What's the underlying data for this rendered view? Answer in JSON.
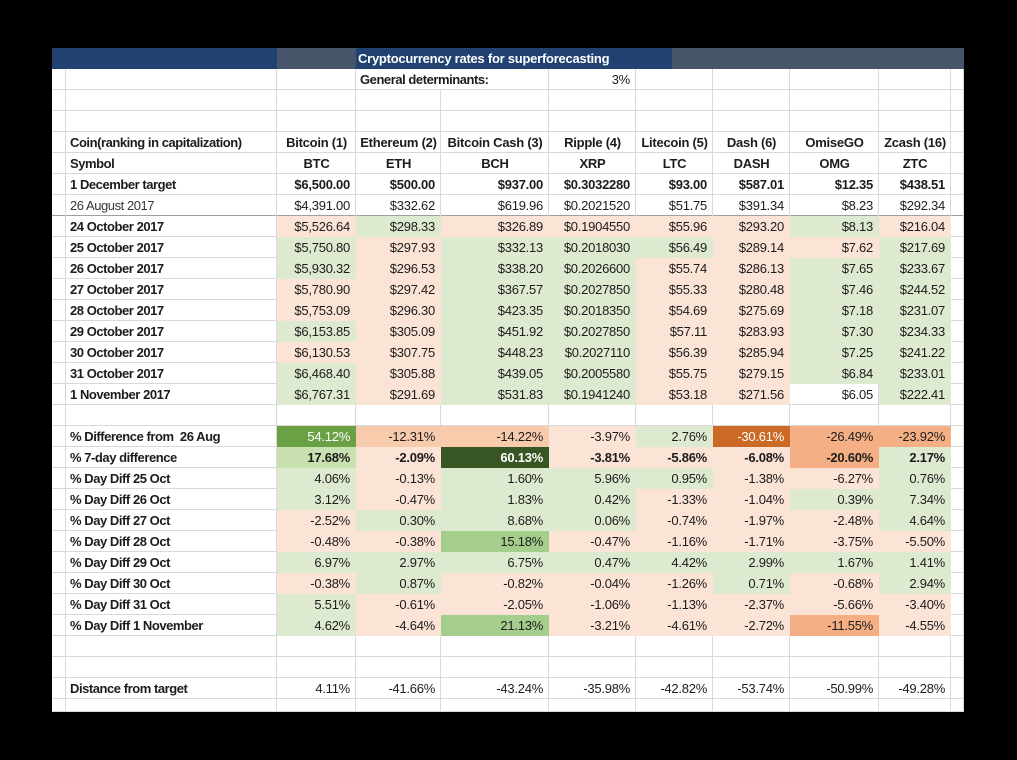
{
  "palette": {
    "navy": "#214271",
    "slate": "#465569",
    "g1": "#DDEACF",
    "g2": "#C9E0B1",
    "g3": "#A5CD8B",
    "g4": "#69A144",
    "g5": "#375623",
    "o1": "#FBE3D5",
    "o2": "#F8CBAD",
    "o3": "#F4B084",
    "o4": "#CB6A26"
  },
  "title": "Cryptocurrency rates for superforecasting",
  "determinants_label": "General determinants:",
  "determinants_value": "3%",
  "corner_label": "Coin(ranking in capitalization)",
  "symbol_label": "Symbol",
  "coins": [
    {
      "name": "Bitcoin (1)",
      "symbol": "BTC"
    },
    {
      "name": "Ethereum (2)",
      "symbol": "ETH"
    },
    {
      "name": "Bitcoin Cash (3)",
      "symbol": "BCH"
    },
    {
      "name": "Ripple (4)",
      "symbol": "XRP"
    },
    {
      "name": "Litecoin (5)",
      "symbol": "LTC"
    },
    {
      "name": "Dash (6)",
      "symbol": "DASH"
    },
    {
      "name": "OmiseGO",
      "symbol": "OMG"
    },
    {
      "name": "Zcash (16)",
      "symbol": "ZTC"
    }
  ],
  "price_rows": [
    {
      "label": "1 December target",
      "bold_label": true,
      "bold_values": true,
      "underline": false,
      "values": [
        "$6,500.00",
        "$500.00",
        "$937.00",
        "$0.3032280",
        "$93.00",
        "$587.01",
        "$12.35",
        "$438.51"
      ],
      "fills": [
        "",
        "",
        "",
        "",
        "",
        "",
        "",
        ""
      ]
    },
    {
      "label": "26 August 2017",
      "bold_label": false,
      "bold_values": false,
      "underline": true,
      "values": [
        "$4,391.00",
        "$332.62",
        "$619.96",
        "$0.2021520",
        "$51.75",
        "$391.34",
        "$8.23",
        "$292.34"
      ],
      "fills": [
        "",
        "",
        "",
        "",
        "",
        "",
        "",
        ""
      ]
    },
    {
      "label": "24 October 2017",
      "bold_label": true,
      "bold_values": false,
      "underline": false,
      "values": [
        "$5,526.64",
        "$298.33",
        "$326.89",
        "$0.1904550",
        "$55.96",
        "$293.20",
        "$8.13",
        "$216.04"
      ],
      "fills": [
        "o1",
        "g1",
        "o1",
        "o1",
        "o1",
        "o1",
        "g1",
        "o1"
      ]
    },
    {
      "label": "25 October 2017",
      "bold_label": true,
      "bold_values": false,
      "underline": false,
      "values": [
        "$5,750.80",
        "$297.93",
        "$332.13",
        "$0.2018030",
        "$56.49",
        "$289.14",
        "$7.62",
        "$217.69"
      ],
      "fills": [
        "g1",
        "o1",
        "g1",
        "g1",
        "g1",
        "o1",
        "o1",
        "g1"
      ]
    },
    {
      "label": "26 October 2017",
      "bold_label": true,
      "bold_values": false,
      "underline": false,
      "values": [
        "$5,930.32",
        "$296.53",
        "$338.20",
        "$0.2026600",
        "$55.74",
        "$286.13",
        "$7.65",
        "$233.67"
      ],
      "fills": [
        "g1",
        "o1",
        "g1",
        "g1",
        "o1",
        "o1",
        "g1",
        "g1"
      ]
    },
    {
      "label": "27 October 2017",
      "bold_label": true,
      "bold_values": false,
      "underline": false,
      "values": [
        "$5,780.90",
        "$297.42",
        "$367.57",
        "$0.2027850",
        "$55.33",
        "$280.48",
        "$7.46",
        "$244.52"
      ],
      "fills": [
        "o1",
        "o1",
        "g1",
        "g1",
        "o1",
        "o1",
        "g1",
        "g1"
      ]
    },
    {
      "label": "28 October 2017",
      "bold_label": true,
      "bold_values": false,
      "underline": false,
      "values": [
        "$5,753.09",
        "$296.30",
        "$423.35",
        "$0.2018350",
        "$54.69",
        "$275.69",
        "$7.18",
        "$231.07"
      ],
      "fills": [
        "o1",
        "o1",
        "g1",
        "g1",
        "o1",
        "o1",
        "g1",
        "g1"
      ]
    },
    {
      "label": "29 October 2017",
      "bold_label": true,
      "bold_values": false,
      "underline": false,
      "values": [
        "$6,153.85",
        "$305.09",
        "$451.92",
        "$0.2027850",
        "$57.11",
        "$283.93",
        "$7.30",
        "$234.33"
      ],
      "fills": [
        "g1",
        "o1",
        "g1",
        "g1",
        "o1",
        "o1",
        "g1",
        "g1"
      ]
    },
    {
      "label": "30 October 2017",
      "bold_label": true,
      "bold_values": false,
      "underline": false,
      "values": [
        "$6,130.53",
        "$307.75",
        "$448.23",
        "$0.2027110",
        "$56.39",
        "$285.94",
        "$7.25",
        "$241.22"
      ],
      "fills": [
        "o1",
        "o1",
        "g1",
        "g1",
        "o1",
        "o1",
        "g1",
        "g1"
      ]
    },
    {
      "label": "31 October 2017",
      "bold_label": true,
      "bold_values": false,
      "underline": false,
      "values": [
        "$6,468.40",
        "$305.88",
        "$439.05",
        "$0.2005580",
        "$55.75",
        "$279.15",
        "$6.84",
        "$233.01"
      ],
      "fills": [
        "g1",
        "o1",
        "g1",
        "g1",
        "o1",
        "o1",
        "g1",
        "g1"
      ]
    },
    {
      "label": "1 November 2017",
      "bold_label": true,
      "bold_values": false,
      "underline": false,
      "values": [
        "$6,767.31",
        "$291.69",
        "$531.83",
        "$0.1941240",
        "$53.18",
        "$271.56",
        "$6.05",
        "$222.41"
      ],
      "fills": [
        "g1",
        "o1",
        "g1",
        "g1",
        "o1",
        "o1",
        "",
        "g1"
      ]
    }
  ],
  "pct_rows": [
    {
      "label": "% Difference from  26 Aug",
      "bold_label": true,
      "bold_values": false,
      "values": [
        "54.12%",
        "-12.31%",
        "-14.22%",
        "-3.97%",
        "2.76%",
        "-30.61%",
        "-26.49%",
        "-23.92%"
      ],
      "fills": [
        "g4",
        "o2",
        "o2",
        "o1",
        "g1",
        "o4",
        "o3",
        "o3"
      ]
    },
    {
      "label": "% 7-day difference",
      "bold_label": true,
      "bold_values": true,
      "values": [
        "17.68%",
        "-2.09%",
        "60.13%",
        "-3.81%",
        "-5.86%",
        "-6.08%",
        "-20.60%",
        "2.17%"
      ],
      "fills": [
        "g2",
        "o1",
        "g5",
        "o1",
        "o1",
        "o1",
        "o3",
        "g1"
      ]
    },
    {
      "label": "% Day Diff 25 Oct",
      "bold_label": true,
      "bold_values": false,
      "values": [
        "4.06%",
        "-0.13%",
        "1.60%",
        "5.96%",
        "0.95%",
        "-1.38%",
        "-6.27%",
        "0.76%"
      ],
      "fills": [
        "g1",
        "o1",
        "g1",
        "g1",
        "g1",
        "o1",
        "o1",
        "g1"
      ]
    },
    {
      "label": "% Day Diff 26 Oct",
      "bold_label": true,
      "bold_values": false,
      "values": [
        "3.12%",
        "-0.47%",
        "1.83%",
        "0.42%",
        "-1.33%",
        "-1.04%",
        "0.39%",
        "7.34%"
      ],
      "fills": [
        "g1",
        "o1",
        "g1",
        "g1",
        "o1",
        "o1",
        "g1",
        "g1"
      ]
    },
    {
      "label": "% Day Diff 27 Oct",
      "bold_label": true,
      "bold_values": false,
      "values": [
        "-2.52%",
        "0.30%",
        "8.68%",
        "0.06%",
        "-0.74%",
        "-1.97%",
        "-2.48%",
        "4.64%"
      ],
      "fills": [
        "o1",
        "g1",
        "g1",
        "g1",
        "o1",
        "o1",
        "o1",
        "g1"
      ]
    },
    {
      "label": "% Day Diff 28 Oct",
      "bold_label": true,
      "bold_values": false,
      "values": [
        "-0.48%",
        "-0.38%",
        "15.18%",
        "-0.47%",
        "-1.16%",
        "-1.71%",
        "-3.75%",
        "-5.50%"
      ],
      "fills": [
        "o1",
        "o1",
        "g3",
        "o1",
        "o1",
        "o1",
        "o1",
        "o1"
      ]
    },
    {
      "label": "% Day Diff 29 Oct",
      "bold_label": true,
      "bold_values": false,
      "values": [
        "6.97%",
        "2.97%",
        "6.75%",
        "0.47%",
        "4.42%",
        "2.99%",
        "1.67%",
        "1.41%"
      ],
      "fills": [
        "g1",
        "g1",
        "g1",
        "g1",
        "g1",
        "g1",
        "g1",
        "g1"
      ]
    },
    {
      "label": "% Day Diff 30 Oct",
      "bold_label": true,
      "bold_values": false,
      "values": [
        "-0.38%",
        "0.87%",
        "-0.82%",
        "-0.04%",
        "-1.26%",
        "0.71%",
        "-0.68%",
        "2.94%"
      ],
      "fills": [
        "o1",
        "g1",
        "o1",
        "o1",
        "o1",
        "g1",
        "o1",
        "g1"
      ]
    },
    {
      "label": "% Day Diff 31 Oct",
      "bold_label": true,
      "bold_values": false,
      "values": [
        "5.51%",
        "-0.61%",
        "-2.05%",
        "-1.06%",
        "-1.13%",
        "-2.37%",
        "-5.66%",
        "-3.40%"
      ],
      "fills": [
        "g1",
        "o1",
        "o1",
        "o1",
        "o1",
        "o1",
        "o1",
        "o1"
      ]
    },
    {
      "label": "% Day Diff 1 November",
      "bold_label": true,
      "bold_values": false,
      "values": [
        "4.62%",
        "-4.64%",
        "21.13%",
        "-3.21%",
        "-4.61%",
        "-2.72%",
        "-11.55%",
        "-4.55%"
      ],
      "fills": [
        "g1",
        "o1",
        "g3",
        "o1",
        "o1",
        "o1",
        "o3",
        "o1"
      ]
    }
  ],
  "distance_row": {
    "label": "Distance from target",
    "bold_label": true,
    "bold_values": false,
    "values": [
      "4.11%",
      "-41.66%",
      "-43.24%",
      "-35.98%",
      "-42.82%",
      "-53.74%",
      "-50.99%",
      "-49.28%"
    ],
    "fills": [
      "",
      "",
      "",
      "",
      "",
      "",
      "",
      ""
    ]
  }
}
